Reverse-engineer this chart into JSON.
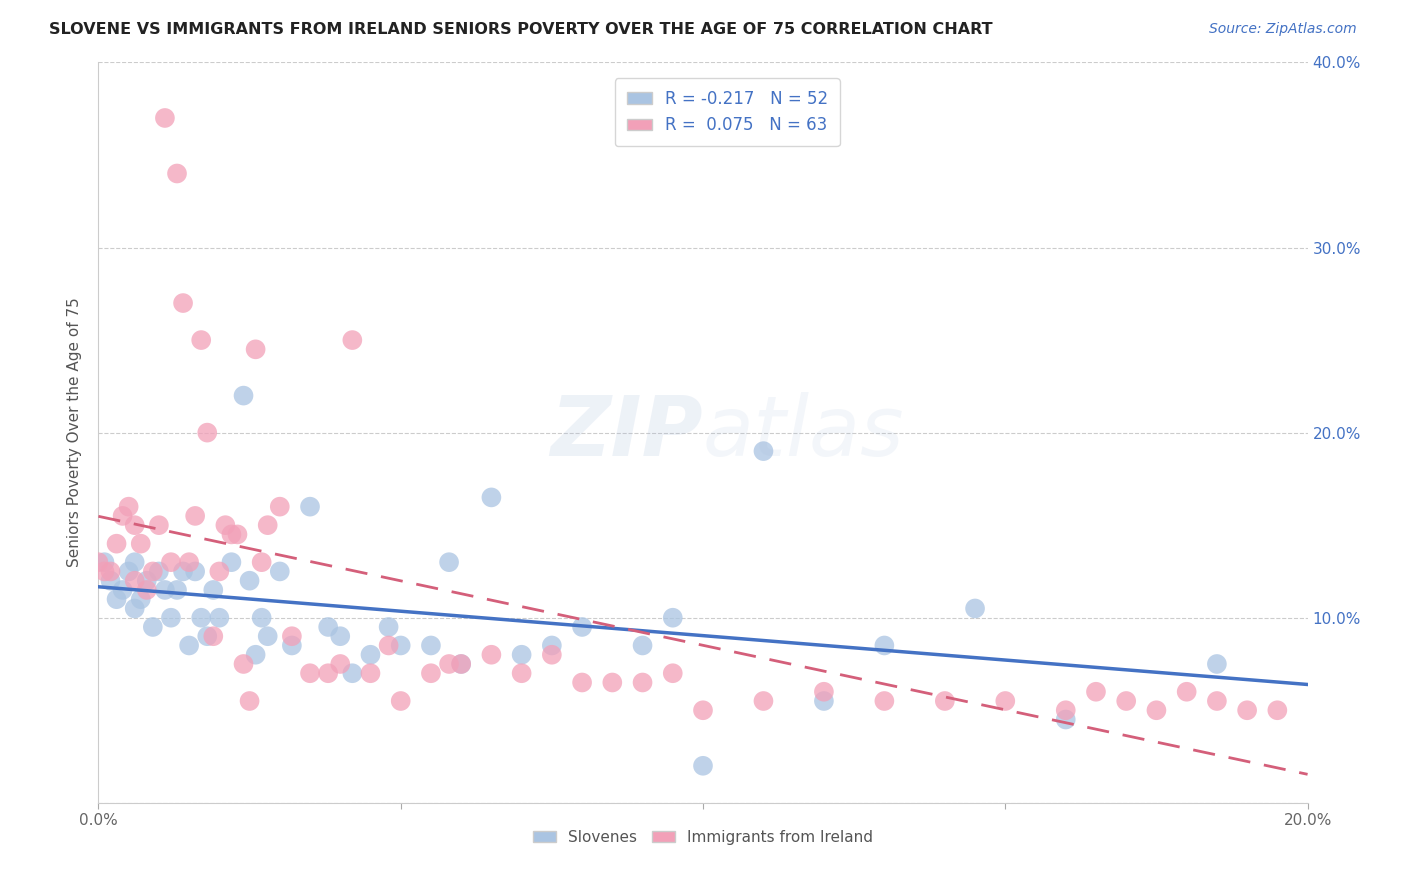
{
  "title": "SLOVENE VS IMMIGRANTS FROM IRELAND SENIORS POVERTY OVER THE AGE OF 75 CORRELATION CHART",
  "source": "Source: ZipAtlas.com",
  "ylabel": "Seniors Poverty Over the Age of 75",
  "xlim": [
    0,
    0.2
  ],
  "ylim": [
    0,
    0.4
  ],
  "xticks": [
    0.0,
    0.05,
    0.1,
    0.15,
    0.2
  ],
  "yticks": [
    0.0,
    0.1,
    0.2,
    0.3,
    0.4
  ],
  "xtick_labels": [
    "0.0%",
    "",
    "",
    "",
    "20.0%"
  ],
  "right_ytick_labels": [
    "",
    "10.0%",
    "20.0%",
    "30.0%",
    "40.0%"
  ],
  "slovene_color": "#aac4e2",
  "ireland_color": "#f2a0b8",
  "slovene_line_color": "#4472c4",
  "ireland_line_color": "#d45f7a",
  "R_slovene": -0.217,
  "N_slovene": 52,
  "R_ireland": 0.075,
  "N_ireland": 63,
  "watermark_zip": "ZIP",
  "watermark_atlas": "atlas",
  "background_color": "#ffffff",
  "grid_color": "#cccccc",
  "slovene_x": [
    0.001,
    0.002,
    0.003,
    0.004,
    0.005,
    0.006,
    0.006,
    0.007,
    0.008,
    0.009,
    0.01,
    0.011,
    0.012,
    0.013,
    0.014,
    0.015,
    0.016,
    0.017,
    0.018,
    0.019,
    0.02,
    0.022,
    0.024,
    0.025,
    0.026,
    0.027,
    0.028,
    0.03,
    0.032,
    0.035,
    0.038,
    0.04,
    0.042,
    0.045,
    0.048,
    0.05,
    0.055,
    0.058,
    0.06,
    0.065,
    0.07,
    0.075,
    0.08,
    0.09,
    0.095,
    0.1,
    0.11,
    0.12,
    0.13,
    0.145,
    0.16,
    0.185
  ],
  "slovene_y": [
    0.13,
    0.12,
    0.11,
    0.115,
    0.125,
    0.105,
    0.13,
    0.11,
    0.12,
    0.095,
    0.125,
    0.115,
    0.1,
    0.115,
    0.125,
    0.085,
    0.125,
    0.1,
    0.09,
    0.115,
    0.1,
    0.13,
    0.22,
    0.12,
    0.08,
    0.1,
    0.09,
    0.125,
    0.085,
    0.16,
    0.095,
    0.09,
    0.07,
    0.08,
    0.095,
    0.085,
    0.085,
    0.13,
    0.075,
    0.165,
    0.08,
    0.085,
    0.095,
    0.085,
    0.1,
    0.02,
    0.19,
    0.055,
    0.085,
    0.105,
    0.045,
    0.075
  ],
  "ireland_x": [
    0.0,
    0.001,
    0.002,
    0.003,
    0.004,
    0.005,
    0.006,
    0.006,
    0.007,
    0.008,
    0.009,
    0.01,
    0.011,
    0.012,
    0.013,
    0.014,
    0.015,
    0.016,
    0.017,
    0.018,
    0.019,
    0.02,
    0.021,
    0.022,
    0.023,
    0.024,
    0.025,
    0.026,
    0.027,
    0.028,
    0.03,
    0.032,
    0.035,
    0.038,
    0.04,
    0.042,
    0.045,
    0.048,
    0.05,
    0.055,
    0.058,
    0.06,
    0.065,
    0.07,
    0.075,
    0.08,
    0.085,
    0.09,
    0.095,
    0.1,
    0.11,
    0.12,
    0.13,
    0.14,
    0.15,
    0.16,
    0.165,
    0.17,
    0.175,
    0.18,
    0.185,
    0.19,
    0.195
  ],
  "ireland_y": [
    0.13,
    0.125,
    0.125,
    0.14,
    0.155,
    0.16,
    0.12,
    0.15,
    0.14,
    0.115,
    0.125,
    0.15,
    0.37,
    0.13,
    0.34,
    0.27,
    0.13,
    0.155,
    0.25,
    0.2,
    0.09,
    0.125,
    0.15,
    0.145,
    0.145,
    0.075,
    0.055,
    0.245,
    0.13,
    0.15,
    0.16,
    0.09,
    0.07,
    0.07,
    0.075,
    0.25,
    0.07,
    0.085,
    0.055,
    0.07,
    0.075,
    0.075,
    0.08,
    0.07,
    0.08,
    0.065,
    0.065,
    0.065,
    0.07,
    0.05,
    0.055,
    0.06,
    0.055,
    0.055,
    0.055,
    0.05,
    0.06,
    0.055,
    0.05,
    0.06,
    0.055,
    0.05,
    0.05
  ]
}
